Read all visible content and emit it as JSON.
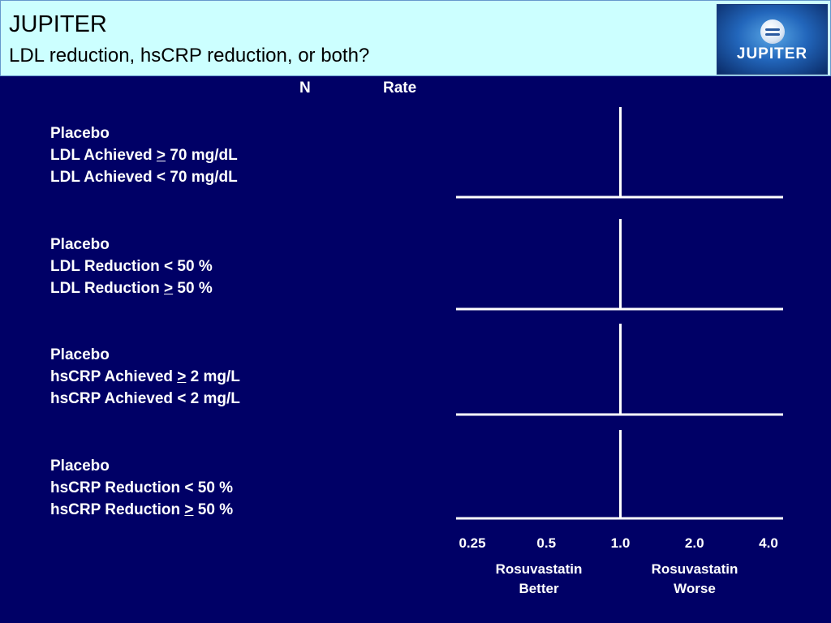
{
  "header": {
    "title": "JUPITER",
    "subtitle": "LDL reduction, hsCRP reduction, or both?",
    "logo_text": "JUPITER",
    "logo_icon": "globe-icon"
  },
  "columns": {
    "n_label": "N",
    "rate_label": "Rate"
  },
  "groups": [
    {
      "lines": [
        {
          "text": "Placebo"
        },
        {
          "pre": "LDL Achieved ",
          "sym": ">",
          "post": " 70 mg/dL"
        },
        {
          "text": "LDL Achieved < 70 mg/dL"
        }
      ]
    },
    {
      "lines": [
        {
          "text": "Placebo"
        },
        {
          "text": "LDL Reduction < 50 %"
        },
        {
          "pre": "LDL Reduction ",
          "sym": ">",
          "post": " 50 %"
        }
      ]
    },
    {
      "lines": [
        {
          "text": "Placebo"
        },
        {
          "pre": "hsCRP Achieved ",
          "sym": ">",
          "post": " 2 mg/L"
        },
        {
          "text": "hsCRP Achieved < 2 mg/L"
        }
      ]
    },
    {
      "lines": [
        {
          "text": "Placebo"
        },
        {
          "text": "hsCRP Reduction < 50 %"
        },
        {
          "pre": "hsCRP Reduction ",
          "sym": ">",
          "post": " 50 %"
        }
      ]
    }
  ],
  "chart_data": {
    "type": "forest",
    "scale": "log",
    "reference_value": 1.0,
    "x_ticks": [
      {
        "value": 0.25,
        "label": "0.25"
      },
      {
        "value": 0.5,
        "label": "0.5"
      },
      {
        "value": 1.0,
        "label": "1.0"
      },
      {
        "value": 2.0,
        "label": "2.0"
      },
      {
        "value": 4.0,
        "label": "4.0"
      }
    ],
    "xlim": [
      0.25,
      4.0
    ],
    "panels": 4,
    "left_label": "Rosuvastatin\nBetter",
    "right_label": "Rosuvastatin\nWorse",
    "color": "#ffffff"
  },
  "colors": {
    "background": "#000066",
    "header_bg": "#ccffff",
    "text": "#ffffff"
  }
}
